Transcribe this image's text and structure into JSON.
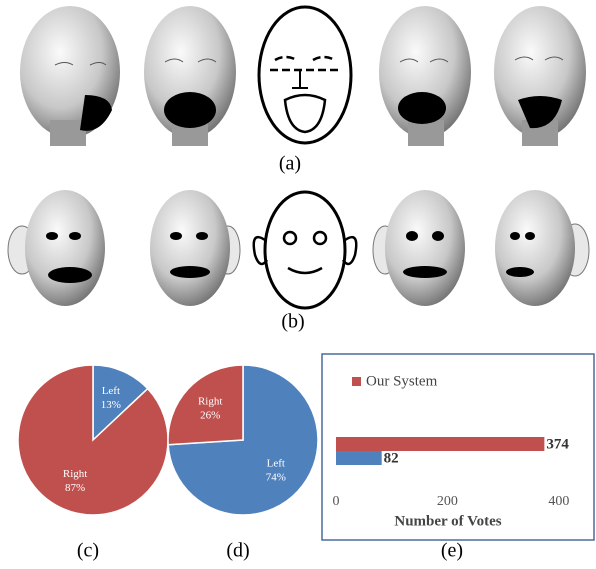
{
  "figure": {
    "captions": [
      "(a)",
      "(b)"
    ]
  },
  "chart_data": [
    {
      "type": "pie",
      "caption": "(c)",
      "categories": [
        "Left",
        "Right"
      ],
      "values": [
        13,
        87
      ],
      "value_labels": [
        "13%",
        "87%"
      ],
      "colors": [
        "#4f81bd",
        "#c0504d"
      ]
    },
    {
      "type": "pie",
      "caption": "(d)",
      "categories": [
        "Left",
        "Right"
      ],
      "values": [
        74,
        26
      ],
      "value_labels": [
        "74%",
        "26%"
      ],
      "colors": [
        "#4f81bd",
        "#c0504d"
      ]
    },
    {
      "type": "hbar",
      "caption": "(e)",
      "xlabel": "Number of Votes",
      "xlim": [
        0,
        420
      ],
      "xticks": [
        0,
        200,
        400
      ],
      "series": [
        {
          "name": "Our System",
          "color": "#c0504d",
          "values": [
            374
          ]
        },
        {
          "name": null,
          "color": "#4f81bd",
          "values": [
            82
          ]
        }
      ]
    }
  ]
}
